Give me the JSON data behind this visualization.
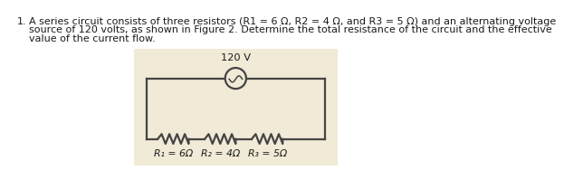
{
  "background_color": "#ffffff",
  "circuit_bg": "#f0ead6",
  "text_color": "#1a1a1a",
  "wire_color": "#444444",
  "voltage_label": "120 V",
  "r1_label": "R₁ = 6Ω",
  "r2_label": "R₂ = 4Ω",
  "r3_label": "R₃ = 5Ω",
  "bullet": "1.",
  "line1": "A series circuit consists of three resistors (R1 = 6 Ω, R2 = 4 Ω, and R3 = 5 Ω) and an alternating voltage",
  "line2": "source of 120 volts, as shown in Figure 2. Determine the total resistance of the circuit and the effective",
  "line3": "value of the current flow.",
  "fontsize_text": 8.0,
  "fontsize_label": 7.8,
  "fontsize_voltage": 8.2
}
